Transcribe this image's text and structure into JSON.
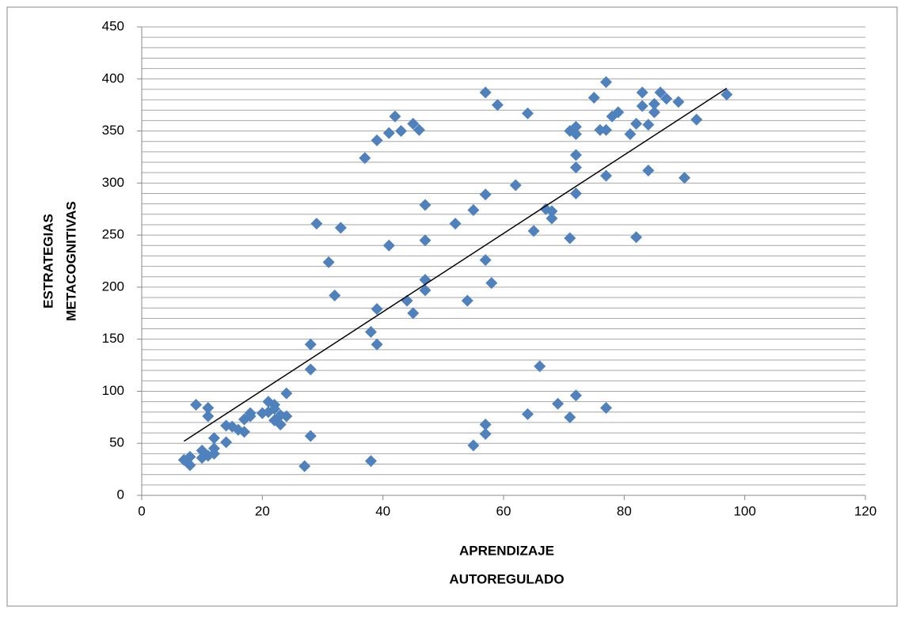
{
  "chart_data": {
    "type": "scatter",
    "x_label": [
      "APRENDIZAJE",
      "AUTOREGULADO"
    ],
    "y_label": [
      "ESTRATEGIAS",
      "METACOGNITIVAS"
    ],
    "xlim": [
      0,
      120
    ],
    "xticks": [
      0,
      20,
      40,
      60,
      80,
      100,
      120
    ],
    "ylim": [
      0,
      450
    ],
    "yticks": [
      0,
      50,
      100,
      150,
      200,
      250,
      300,
      350,
      400,
      450
    ],
    "ygrid": [
      0,
      10,
      20,
      30,
      40,
      50,
      60,
      70,
      80,
      90,
      100,
      110,
      120,
      130,
      140,
      150,
      160,
      170,
      180,
      190,
      200,
      210,
      220,
      230,
      240,
      250,
      260,
      270,
      280,
      290,
      300,
      310,
      320,
      330,
      340,
      350,
      360,
      370,
      380,
      390,
      400,
      410,
      420,
      430,
      440,
      450
    ],
    "grid": true,
    "color": "#4f81bd",
    "x": [
      7,
      8,
      8,
      10,
      10,
      11,
      9,
      11,
      11,
      12,
      12,
      12,
      14,
      14,
      15,
      16,
      17,
      17,
      18,
      18,
      20,
      21,
      21,
      22,
      22,
      22,
      23,
      23,
      24,
      24,
      27,
      28,
      28,
      28,
      29,
      31,
      32,
      33,
      37,
      38,
      38,
      39,
      39,
      39,
      41,
      41,
      42,
      43,
      44,
      45,
      45,
      46,
      47,
      47,
      47,
      47,
      52,
      54,
      55,
      55,
      57,
      57,
      57,
      57,
      57,
      58,
      59,
      62,
      64,
      64,
      65,
      66,
      67,
      68,
      68,
      69,
      71,
      71,
      71,
      72,
      72,
      72,
      72,
      72,
      72,
      75,
      76,
      77,
      77,
      77,
      77,
      78,
      79,
      81,
      82,
      82,
      83,
      83,
      84,
      84,
      85,
      85,
      86,
      87,
      89,
      90,
      92,
      97
    ],
    "values": [
      34,
      37,
      29,
      36,
      43,
      38,
      87,
      84,
      76,
      55,
      40,
      45,
      51,
      67,
      66,
      63,
      61,
      73,
      76,
      79,
      79,
      90,
      80,
      87,
      83,
      72,
      77,
      68,
      76,
      98,
      28,
      57,
      121,
      145,
      261,
      224,
      192,
      257,
      324,
      157,
      33,
      179,
      145,
      341,
      240,
      348,
      364,
      350,
      187,
      175,
      357,
      351,
      207,
      197,
      245,
      279,
      261,
      187,
      274,
      48,
      387,
      289,
      226,
      68,
      59,
      204,
      375,
      298,
      367,
      78,
      254,
      124,
      275,
      266,
      273,
      88,
      247,
      350,
      75,
      354,
      347,
      327,
      315,
      290,
      96,
      382,
      351,
      397,
      351,
      307,
      84,
      364,
      368,
      347,
      357,
      248,
      387,
      374,
      356,
      312,
      376,
      368,
      387,
      381,
      378,
      305,
      361,
      385
    ],
    "trendline": {
      "x": [
        7,
        97
      ],
      "y": [
        52,
        391
      ],
      "color": "#000000"
    }
  }
}
